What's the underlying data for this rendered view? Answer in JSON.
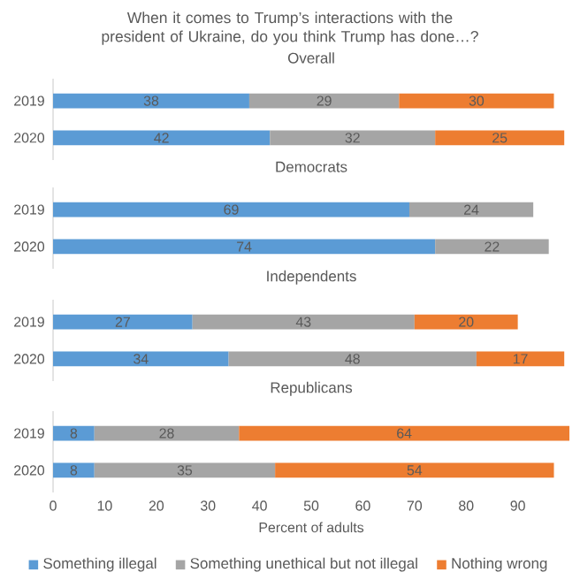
{
  "chart_data": [
    {
      "type": "bar",
      "orientation": "horizontal",
      "stacked": true,
      "title": "When it comes to Trump’s interactions with the president of Ukraine, do you think Trump has done…?",
      "subtitle": "Overall",
      "categories": [
        "2019",
        "2020"
      ],
      "tick_labels": "y",
      "data_labels": true,
      "series": [
        {
          "color": "#5b9bd5",
          "values": [
            38,
            42
          ]
        },
        {
          "color": "#a5a5a5",
          "values": [
            29,
            32
          ]
        },
        {
          "color": "#ed7d31",
          "values": [
            30,
            25
          ]
        }
      ]
    },
    {
      "type": "bar",
      "orientation": "horizontal",
      "stacked": true,
      "title": "Democrats",
      "categories": [
        "2019",
        "2020"
      ],
      "tick_labels": "y",
      "data_labels": true,
      "series": [
        {
          "color": "#5b9bd5",
          "values": [
            69,
            74
          ]
        },
        {
          "color": "#a5a5a5",
          "values": [
            24,
            22
          ]
        },
        {
          "color": "#ed7d31",
          "values": [
            null,
            null
          ]
        }
      ]
    },
    {
      "type": "bar",
      "orientation": "horizontal",
      "stacked": true,
      "title": "Independents",
      "categories": [
        "2019",
        "2020"
      ],
      "tick_labels": "y",
      "data_labels": true,
      "series": [
        {
          "color": "#5b9bd5",
          "values": [
            27,
            34
          ]
        },
        {
          "color": "#a5a5a5",
          "values": [
            43,
            48
          ]
        },
        {
          "color": "#ed7d31",
          "values": [
            20,
            17
          ]
        }
      ]
    },
    {
      "type": "bar",
      "orientation": "horizontal",
      "stacked": true,
      "title": "Republicans",
      "categories": [
        "2019",
        "2020"
      ],
      "xlim": [
        0,
        100
      ],
      "xticks": [
        0,
        10,
        20,
        30,
        40,
        50,
        60,
        70,
        80,
        90
      ],
      "xlabel": "Percent of adults",
      "legend": "bottom",
      "data_labels": true,
      "series": [
        {
          "name": "Something illegal",
          "color": "#5b9bd5",
          "values": [
            8,
            8
          ]
        },
        {
          "name": "Something unethical but not illegal",
          "color": "#a5a5a5",
          "values": [
            28,
            35
          ]
        },
        {
          "name": "Nothing wrong",
          "color": "#ed7d31",
          "values": [
            64,
            54
          ]
        }
      ]
    }
  ]
}
